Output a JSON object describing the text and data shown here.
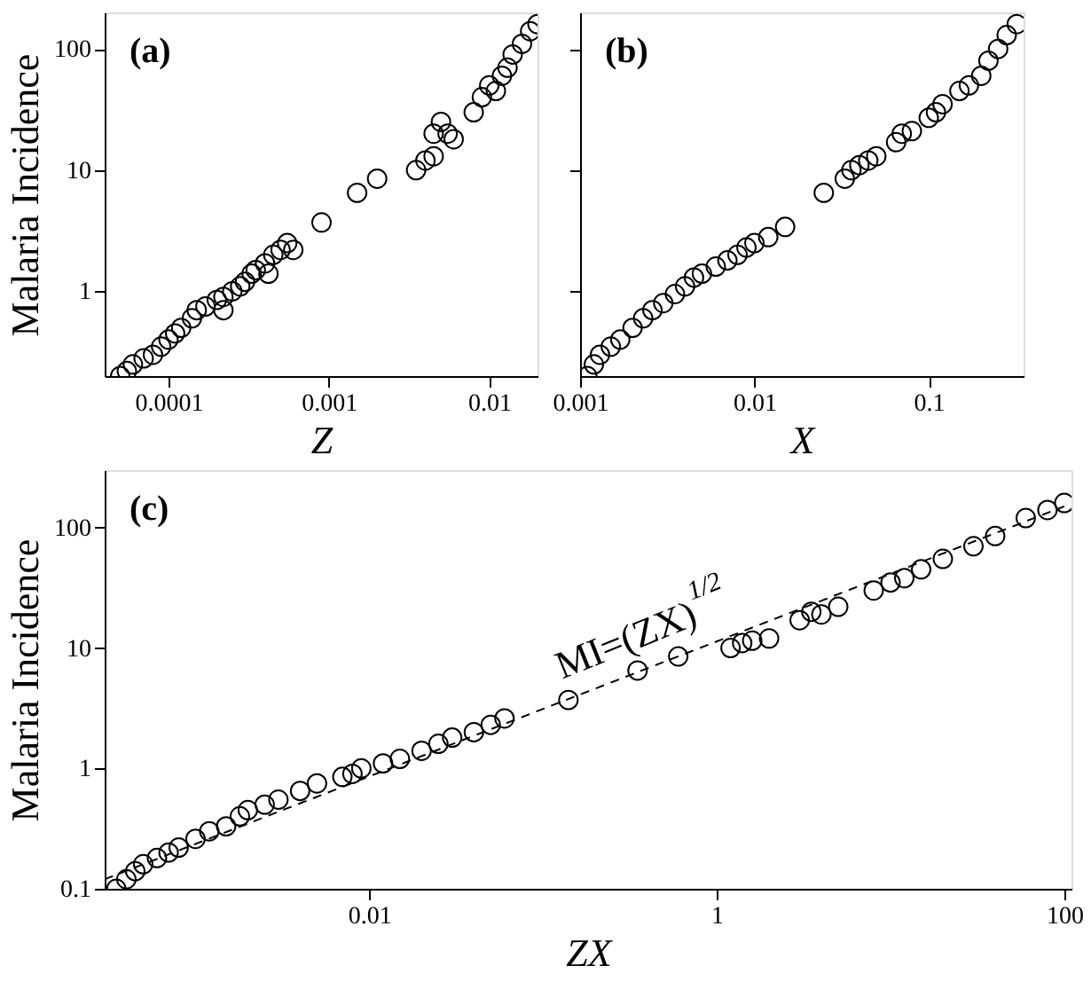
{
  "chart_data": [
    {
      "type": "scatter",
      "xlabel": "Z",
      "ylabel": "Malaria Incidence",
      "log": "xy",
      "marker": "circle",
      "grid": false,
      "annotations": [
        "(a)"
      ],
      "xlim": [
        4e-05,
        0.02
      ],
      "ylim": [
        0.2,
        200
      ],
      "xticks": [
        0.0001,
        0.001,
        0.01
      ],
      "yticks": [
        1,
        10,
        100
      ],
      "series": [
        {
          "color": "#000000",
          "x": [
            5e-05,
            5.5e-05,
            6e-05,
            7e-05,
            8e-05,
            9e-05,
            0.0001,
            0.00011,
            0.00012,
            0.00014,
            0.00015,
            0.00017,
            0.0002,
            0.00022,
            0.00022,
            0.00025,
            0.00028,
            0.0003,
            0.00033,
            0.00035,
            0.0004,
            0.00042,
            0.00045,
            0.0005,
            0.00055,
            0.0006,
            0.0009,
            0.0015,
            0.002,
            0.0035,
            0.004,
            0.0045,
            0.0045,
            0.005,
            0.0055,
            0.006,
            0.008,
            0.009,
            0.01,
            0.011,
            0.012,
            0.013,
            0.014,
            0.016,
            0.018,
            0.02
          ],
          "values": [
            0.2,
            0.22,
            0.25,
            0.28,
            0.3,
            0.35,
            0.4,
            0.45,
            0.5,
            0.6,
            0.7,
            0.75,
            0.85,
            0.9,
            0.7,
            1.0,
            1.1,
            1.2,
            1.4,
            1.5,
            1.7,
            1.4,
            2.0,
            2.2,
            2.5,
            2.2,
            3.7,
            6.5,
            8.5,
            10,
            12,
            13,
            20,
            25,
            20,
            18,
            30,
            40,
            50,
            45,
            60,
            70,
            90,
            110,
            140,
            160
          ]
        }
      ]
    },
    {
      "type": "scatter",
      "xlabel": "X",
      "log": "xy",
      "marker": "circle",
      "grid": false,
      "tick_labels": "x",
      "annotations": [
        "(b)"
      ],
      "xlim": [
        0.001,
        0.35
      ],
      "ylim": [
        0.2,
        200
      ],
      "xticks": [
        0.001,
        0.01,
        0.1
      ],
      "yticks": [
        1,
        10,
        100
      ],
      "series": [
        {
          "color": "#000000",
          "x": [
            0.0011,
            0.0012,
            0.0013,
            0.0015,
            0.0017,
            0.002,
            0.0023,
            0.0026,
            0.003,
            0.0035,
            0.004,
            0.0045,
            0.005,
            0.006,
            0.007,
            0.008,
            0.009,
            0.01,
            0.012,
            0.015,
            0.025,
            0.033,
            0.036,
            0.04,
            0.045,
            0.05,
            0.065,
            0.07,
            0.08,
            0.1,
            0.11,
            0.12,
            0.15,
            0.17,
            0.2,
            0.22,
            0.25,
            0.28,
            0.32
          ],
          "values": [
            0.2,
            0.25,
            0.3,
            0.35,
            0.4,
            0.5,
            0.6,
            0.7,
            0.8,
            0.95,
            1.1,
            1.3,
            1.4,
            1.6,
            1.8,
            2.0,
            2.3,
            2.5,
            2.8,
            3.4,
            6.5,
            8.5,
            10,
            11,
            12,
            13,
            17,
            20,
            21,
            27,
            30,
            35,
            45,
            50,
            60,
            80,
            100,
            130,
            160
          ]
        }
      ]
    },
    {
      "type": "scatter",
      "xlabel": "ZX",
      "ylabel": "Malaria Incidence",
      "log": "xy",
      "grid": false,
      "annotations": [
        "(c)",
        "MI=(ZX)$^{1/2}$"
      ],
      "xlim": [
        0.0003,
        110
      ],
      "ylim": [
        0.1,
        300
      ],
      "xticks": [
        0.01,
        1,
        100
      ],
      "yticks": [
        0.1,
        1,
        10,
        100
      ],
      "series": [
        {
          "type": "line",
          "color": "#000000",
          "line_style": "dashed",
          "marker": "none",
          "x": [
            0.0003,
            100
          ],
          "values": [
            0.12,
            150
          ]
        },
        {
          "color": "#000000",
          "marker": "circle",
          "x": [
            0.00035,
            0.0004,
            0.00045,
            0.0005,
            0.0006,
            0.0007,
            0.0008,
            0.001,
            0.0012,
            0.0015,
            0.0018,
            0.002,
            0.0025,
            0.003,
            0.004,
            0.005,
            0.007,
            0.008,
            0.009,
            0.012,
            0.015,
            0.02,
            0.025,
            0.03,
            0.04,
            0.05,
            0.06,
            0.14,
            0.35,
            0.6,
            1.2,
            1.4,
            1.6,
            2,
            3,
            3.5,
            4,
            5,
            8,
            10,
            12,
            15,
            20,
            30,
            40,
            60,
            80,
            100
          ],
          "values": [
            0.1,
            0.12,
            0.14,
            0.16,
            0.18,
            0.2,
            0.22,
            0.26,
            0.3,
            0.33,
            0.4,
            0.45,
            0.5,
            0.55,
            0.65,
            0.75,
            0.85,
            0.9,
            1.0,
            1.1,
            1.2,
            1.4,
            1.6,
            1.8,
            2.0,
            2.3,
            2.6,
            3.7,
            6.5,
            8.5,
            10,
            11,
            11.5,
            12,
            17,
            20,
            19,
            22,
            30,
            35,
            38,
            45,
            55,
            70,
            85,
            120,
            140,
            160
          ]
        }
      ]
    }
  ]
}
